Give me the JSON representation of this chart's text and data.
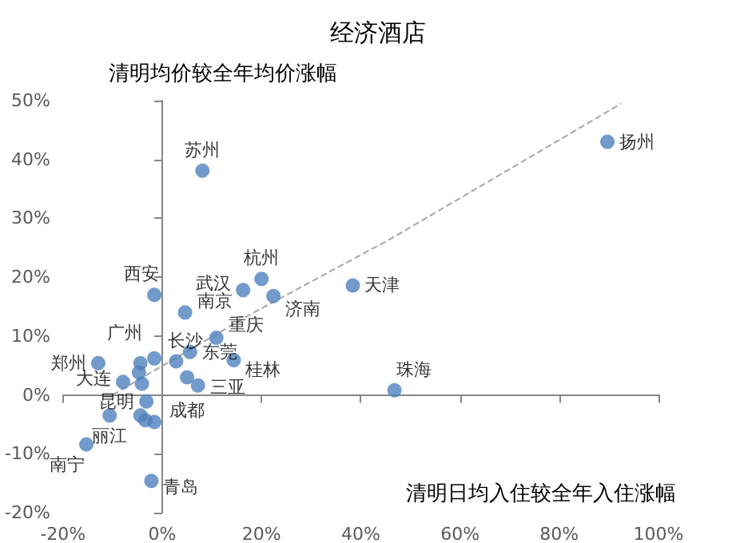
{
  "chart_data": {
    "type": "scatter",
    "title": "经济酒店",
    "xlabel": "清明日均入住较全年入住涨幅",
    "ylabel": "清明均价较全年均价涨幅",
    "x": [
      8.1,
      -1.6,
      16.3,
      20,
      22.4,
      4.6,
      38.4,
      89.7,
      46.8,
      10.9,
      5.6,
      14.4,
      2.8,
      -1.6,
      -12.9,
      -4.4,
      -4.7,
      -7.9,
      -4.1,
      -3.2,
      -10.6,
      -4.4,
      -3.4,
      5,
      7.2,
      -1.6,
      -15.3,
      -2.2
    ],
    "values": [
      38.1,
      17,
      17.8,
      19.7,
      16.8,
      14,
      18.6,
      43,
      0.8,
      9.7,
      7.3,
      5.9,
      5.7,
      6.2,
      5.4,
      5.4,
      3.8,
      2.2,
      1.9,
      -1.1,
      -3.5,
      -3.5,
      -4.3,
      3,
      1.6,
      -4.6,
      -8.4,
      -14.6
    ],
    "value_labels": [
      "苏州",
      "西安",
      "武汉",
      "杭州",
      "济南",
      "南京",
      "天津",
      "扬州",
      "珠海",
      "重庆",
      "东莞",
      "桂林",
      "长沙",
      "广州",
      "郑州",
      null,
      null,
      "大连",
      null,
      "昆明",
      "丽江",
      null,
      null,
      "成都",
      "三亚",
      null,
      "南宁",
      "青岛"
    ],
    "color": "#4f81bd",
    "marker": "circle",
    "series": [
      {
        "type": "line",
        "color": "#a6a6a6",
        "line_style": "dashed",
        "marker": "none",
        "x": [
          -10,
          18,
          46,
          92.5
        ],
        "values": [
          0,
          13.8,
          26.5,
          49.5
        ]
      }
    ],
    "xlim": [
      -20,
      100
    ],
    "xticks": [
      {
        "value": -20,
        "label": "-20%"
      },
      {
        "value": 0,
        "label": "0%"
      },
      {
        "value": 20,
        "label": "20%"
      },
      {
        "value": 40,
        "label": "40%"
      },
      {
        "value": 60,
        "label": "60%"
      },
      {
        "value": 80,
        "label": "80%"
      },
      {
        "value": 100,
        "label": "100%"
      }
    ],
    "ylim": [
      -20,
      50
    ],
    "yticks": [
      {
        "value": -20,
        "label": "-20%"
      },
      {
        "value": -10,
        "label": "-10%"
      },
      {
        "value": 0,
        "label": "0%"
      },
      {
        "value": 10,
        "label": "10%"
      },
      {
        "value": 20,
        "label": "20%"
      },
      {
        "value": 30,
        "label": "30%"
      },
      {
        "value": 40,
        "label": "40%"
      },
      {
        "value": 50,
        "label": "50%"
      }
    ]
  }
}
